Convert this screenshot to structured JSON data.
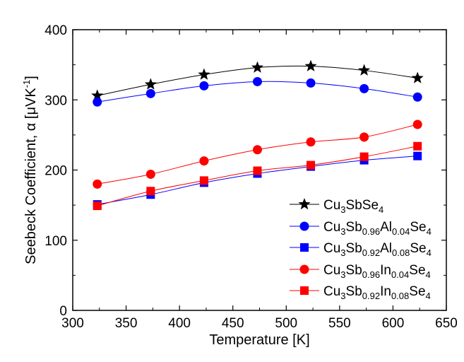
{
  "chart_data": {
    "type": "line",
    "xlabel": "Temperature [K]",
    "ylabel_parts": [
      "Seebeck Coefficient, ",
      "α",
      " [",
      "μ",
      "VK",
      "-1",
      "]"
    ],
    "xlim": [
      300,
      650
    ],
    "ylim": [
      0,
      400
    ],
    "xticks": [
      300,
      350,
      400,
      450,
      500,
      550,
      600,
      650
    ],
    "yticks": [
      0,
      100,
      200,
      300,
      400
    ],
    "x": [
      323,
      373,
      423,
      473,
      523,
      573,
      623
    ],
    "grid": false,
    "legend_position": "lower-right",
    "series": [
      {
        "name": "Cu3SbSe4",
        "name_parts": [
          [
            "Cu",
            "n"
          ],
          [
            "3",
            "sub"
          ],
          [
            "SbSe",
            "n"
          ],
          [
            "4",
            "sub"
          ]
        ],
        "values": [
          306,
          322,
          336,
          346,
          348,
          342,
          331
        ],
        "color": "#000000",
        "marker": "star"
      },
      {
        "name": "Cu3Sb0.96Al0.04Se4",
        "name_parts": [
          [
            "Cu",
            "n"
          ],
          [
            "3",
            "sub"
          ],
          [
            "Sb",
            "n"
          ],
          [
            "0.96",
            "sub"
          ],
          [
            "Al",
            "n"
          ],
          [
            "0.04",
            "sub"
          ],
          [
            "Se",
            "n"
          ],
          [
            "4",
            "sub"
          ]
        ],
        "values": [
          297,
          309,
          320,
          326,
          324,
          316,
          304
        ],
        "color": "#0000ff",
        "marker": "circle"
      },
      {
        "name": "Cu3Sb0.92Al0.08Se4",
        "name_parts": [
          [
            "Cu",
            "n"
          ],
          [
            "3",
            "sub"
          ],
          [
            "Sb",
            "n"
          ],
          [
            "0.92",
            "sub"
          ],
          [
            "Al",
            "n"
          ],
          [
            "0.08",
            "sub"
          ],
          [
            "Se",
            "n"
          ],
          [
            "4",
            "sub"
          ]
        ],
        "values": [
          151,
          165,
          182,
          195,
          205,
          214,
          220
        ],
        "color": "#0000ff",
        "marker": "square"
      },
      {
        "name": "Cu3Sb0.96In0.04Se4",
        "name_parts": [
          [
            "Cu",
            "n"
          ],
          [
            "3",
            "sub"
          ],
          [
            "Sb",
            "n"
          ],
          [
            "0.96",
            "sub"
          ],
          [
            "In",
            "n"
          ],
          [
            "0.04",
            "sub"
          ],
          [
            "Se",
            "n"
          ],
          [
            "4",
            "sub"
          ]
        ],
        "values": [
          180,
          194,
          213,
          229,
          240,
          247,
          265
        ],
        "color": "#ff0000",
        "marker": "circle"
      },
      {
        "name": "Cu3Sb0.92In0.08Se4",
        "name_parts": [
          [
            "Cu",
            "n"
          ],
          [
            "3",
            "sub"
          ],
          [
            "Sb",
            "n"
          ],
          [
            "0.92",
            "sub"
          ],
          [
            "In",
            "n"
          ],
          [
            "0.08",
            "sub"
          ],
          [
            "Se",
            "n"
          ],
          [
            "4",
            "sub"
          ]
        ],
        "values": [
          149,
          170,
          185,
          199,
          207,
          219,
          234
        ],
        "color": "#ff0000",
        "marker": "square"
      }
    ]
  }
}
